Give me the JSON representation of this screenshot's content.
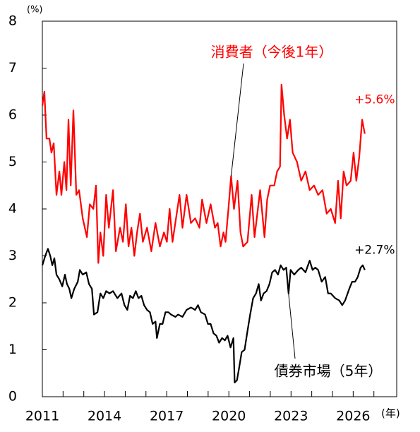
{
  "chart_data": {
    "type": "line",
    "y_unit_label": "(%)",
    "x_unit_label": "(年)",
    "xlim": [
      2011,
      2028.1
    ],
    "xticks": [
      2011,
      2014,
      2017,
      2020,
      2023,
      2026
    ],
    "x_minor_ticks": [
      2012,
      2013,
      2015,
      2016,
      2018,
      2019,
      2021,
      2022,
      2024,
      2025,
      2027
    ],
    "ylim": [
      0,
      8
    ],
    "yticks": [
      0,
      1,
      2,
      3,
      4,
      5,
      6,
      7,
      8
    ],
    "series": [
      {
        "name": "消費者（今後1年）",
        "color": "#ff0000",
        "end_label": "+5.6%",
        "x": [
          2011.0,
          2011.1,
          2011.2,
          2011.34,
          2011.44,
          2011.55,
          2011.68,
          2011.82,
          2011.92,
          2012.06,
          2012.16,
          2012.26,
          2012.37,
          2012.5,
          2012.64,
          2012.77,
          2012.95,
          2013.15,
          2013.29,
          2013.46,
          2013.59,
          2013.7,
          2013.8,
          2013.94,
          2014.08,
          2014.21,
          2014.41,
          2014.55,
          2014.75,
          2014.89,
          2015.03,
          2015.16,
          2015.3,
          2015.44,
          2015.57,
          2015.71,
          2015.85,
          2016.05,
          2016.26,
          2016.46,
          2016.67,
          2016.87,
          2017.01,
          2017.14,
          2017.28,
          2017.62,
          2017.76,
          2017.96,
          2018.17,
          2018.37,
          2018.58,
          2018.71,
          2018.92,
          2019.12,
          2019.33,
          2019.46,
          2019.6,
          2019.74,
          2019.84,
          2019.98,
          2020.11,
          2020.25,
          2020.42,
          2020.56,
          2020.69,
          2020.9,
          2021.1,
          2021.24,
          2021.51,
          2021.72,
          2021.85,
          2021.99,
          2022.19,
          2022.33,
          2022.47,
          2022.54,
          2022.67,
          2022.81,
          2022.95,
          2023.08,
          2023.29,
          2023.49,
          2023.7,
          2023.9,
          2024.11,
          2024.31,
          2024.52,
          2024.72,
          2024.92,
          2025.13,
          2025.27,
          2025.4,
          2025.54,
          2025.68,
          2025.88,
          2026.02,
          2026.15,
          2026.29,
          2026.43,
          2026.56
        ],
        "values": [
          6.2,
          6.5,
          5.5,
          5.5,
          5.2,
          5.4,
          4.3,
          4.8,
          4.3,
          5.0,
          4.4,
          5.9,
          4.5,
          6.1,
          4.3,
          4.4,
          3.8,
          3.4,
          4.1,
          4.0,
          4.5,
          2.85,
          3.5,
          3.0,
          4.3,
          3.6,
          4.4,
          3.1,
          3.6,
          3.3,
          4.1,
          3.2,
          3.6,
          3.0,
          3.5,
          3.9,
          3.3,
          3.6,
          3.1,
          3.7,
          3.2,
          3.5,
          3.3,
          4.0,
          3.3,
          4.3,
          3.6,
          4.3,
          3.7,
          3.8,
          3.6,
          4.2,
          3.7,
          4.1,
          3.6,
          3.7,
          3.2,
          3.5,
          3.3,
          4.0,
          4.7,
          4.0,
          4.6,
          3.5,
          3.2,
          3.3,
          4.3,
          3.4,
          4.4,
          3.4,
          4.2,
          4.5,
          4.5,
          4.8,
          4.9,
          6.65,
          6.0,
          5.5,
          5.9,
          5.2,
          5.0,
          4.6,
          4.8,
          4.4,
          4.5,
          4.3,
          4.4,
          3.9,
          4.0,
          3.7,
          4.6,
          3.8,
          4.8,
          4.5,
          4.6,
          5.2,
          4.6,
          5.1,
          5.9,
          5.6
        ]
      },
      {
        "name": "債券市場（5年）",
        "color": "#000000",
        "end_label": "+2.7%",
        "x": [
          2011.0,
          2011.14,
          2011.27,
          2011.38,
          2011.48,
          2011.58,
          2011.68,
          2011.82,
          2011.96,
          2012.09,
          2012.19,
          2012.3,
          2012.4,
          2012.54,
          2012.71,
          2012.81,
          2012.95,
          2013.12,
          2013.25,
          2013.39,
          2013.49,
          2013.66,
          2013.8,
          2013.94,
          2014.08,
          2014.24,
          2014.41,
          2014.62,
          2014.82,
          2014.96,
          2015.1,
          2015.23,
          2015.37,
          2015.51,
          2015.64,
          2015.78,
          2015.91,
          2016.05,
          2016.19,
          2016.32,
          2016.46,
          2016.53,
          2016.67,
          2016.8,
          2016.94,
          2017.08,
          2017.21,
          2017.42,
          2017.55,
          2017.76,
          2017.96,
          2018.17,
          2018.37,
          2018.51,
          2018.65,
          2018.85,
          2018.99,
          2019.12,
          2019.26,
          2019.4,
          2019.53,
          2019.67,
          2019.81,
          2019.94,
          2020.08,
          2020.22,
          2020.28,
          2020.39,
          2020.49,
          2020.62,
          2020.76,
          2020.9,
          2021.03,
          2021.17,
          2021.31,
          2021.44,
          2021.55,
          2021.68,
          2021.82,
          2021.96,
          2022.09,
          2022.23,
          2022.37,
          2022.5,
          2022.64,
          2022.77,
          2022.88,
          2022.98,
          2023.15,
          2023.35,
          2023.49,
          2023.7,
          2023.9,
          2024.04,
          2024.17,
          2024.31,
          2024.48,
          2024.65,
          2024.79,
          2024.92,
          2025.13,
          2025.33,
          2025.47,
          2025.61,
          2025.81,
          2025.95,
          2026.09,
          2026.22,
          2026.36,
          2026.46,
          2026.56
        ],
        "values": [
          2.8,
          3.0,
          3.15,
          3.0,
          2.8,
          2.95,
          2.6,
          2.5,
          2.35,
          2.6,
          2.4,
          2.3,
          2.1,
          2.3,
          2.45,
          2.7,
          2.6,
          2.65,
          2.4,
          2.3,
          1.75,
          1.8,
          2.2,
          2.1,
          2.25,
          2.2,
          2.25,
          2.1,
          2.2,
          1.95,
          1.85,
          2.15,
          2.1,
          2.25,
          2.1,
          2.15,
          1.95,
          1.85,
          1.8,
          1.55,
          1.6,
          1.25,
          1.55,
          1.55,
          1.8,
          1.8,
          1.75,
          1.7,
          1.75,
          1.7,
          1.85,
          1.9,
          1.85,
          1.95,
          1.8,
          1.75,
          1.55,
          1.55,
          1.35,
          1.3,
          1.15,
          1.25,
          1.2,
          1.3,
          1.05,
          1.25,
          0.3,
          0.35,
          0.6,
          0.95,
          1.0,
          1.4,
          1.75,
          2.1,
          2.2,
          2.4,
          2.05,
          2.2,
          2.25,
          2.4,
          2.65,
          2.7,
          2.6,
          2.8,
          2.7,
          2.75,
          2.2,
          2.7,
          2.6,
          2.7,
          2.75,
          2.65,
          2.9,
          2.7,
          2.75,
          2.7,
          2.45,
          2.55,
          2.2,
          2.2,
          2.1,
          2.05,
          1.95,
          2.05,
          2.3,
          2.45,
          2.45,
          2.55,
          2.75,
          2.8,
          2.7
        ]
      }
    ]
  }
}
